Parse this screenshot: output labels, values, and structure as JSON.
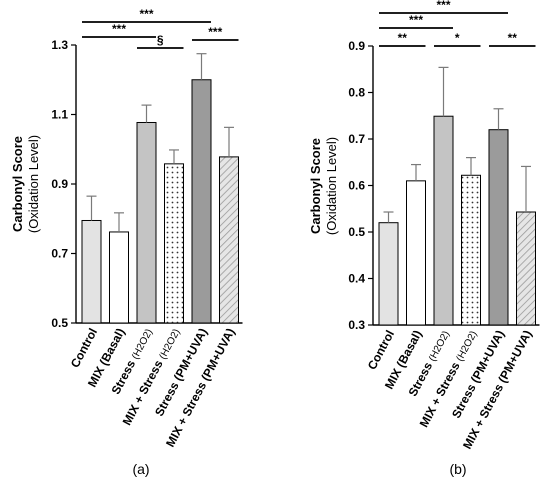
{
  "colors": {
    "light_gray": "#e3e3e3",
    "white": "#ffffff",
    "mid_gray": "#c4c4c4",
    "dark_gray": "#9b9b9b",
    "axis": "#000000",
    "error": "#7a7a7a"
  },
  "chart_data": [
    {
      "type": "bar",
      "panel_label": "(a)",
      "ylabel": "Carbonyl Score",
      "ylabel_sub": "(Oxidation Level)",
      "ylim": [
        0.5,
        1.3
      ],
      "yticks": [
        0.5,
        0.7,
        0.9,
        1.1,
        1.3
      ],
      "ytick_labels": [
        "0.5",
        "0.7",
        "0.9",
        "1.1",
        "1.3"
      ],
      "categories": [
        {
          "label": "Control",
          "sub": ""
        },
        {
          "label": "MIX (Basal)",
          "sub": ""
        },
        {
          "label": "Stress",
          "sub": "(H2O2)"
        },
        {
          "label": "MIX + Stress",
          "sub": "(H2O2)"
        },
        {
          "label": "Stress (PM+UVA)",
          "sub": ""
        },
        {
          "label": "MIX + Stress (PM+UVA)",
          "sub": ""
        }
      ],
      "values": [
        0.795,
        0.762,
        1.077,
        0.958,
        1.2,
        0.978
      ],
      "errors": [
        0.07,
        0.055,
        0.05,
        0.04,
        0.075,
        0.085
      ],
      "patterns": [
        "light",
        "white",
        "mid",
        "dots",
        "dark",
        "hatch"
      ],
      "significance": [
        {
          "from": 0,
          "to": 4,
          "label": "***"
        },
        {
          "from": 0,
          "to": 2,
          "label": "***"
        },
        {
          "from": 2,
          "to": 3,
          "label": "§"
        },
        {
          "from": 4,
          "to": 5,
          "label": "***"
        }
      ]
    },
    {
      "type": "bar",
      "panel_label": "(b)",
      "ylabel": "Carbonyl Score",
      "ylabel_sub": "(Oxidation Level)",
      "ylim": [
        0.3,
        0.9
      ],
      "yticks": [
        0.3,
        0.4,
        0.5,
        0.6,
        0.7,
        0.8,
        0.9
      ],
      "ytick_labels": [
        "0.3",
        "0.4",
        "0.5",
        "0.6",
        "0.7",
        "0.8",
        "0.9"
      ],
      "categories": [
        {
          "label": "Control",
          "sub": ""
        },
        {
          "label": "MIX (Basal)",
          "sub": ""
        },
        {
          "label": "Stress",
          "sub": "(H2O2)"
        },
        {
          "label": "MIX + Stress",
          "sub": "(H2O2)"
        },
        {
          "label": "Stress (PM+UVA)",
          "sub": ""
        },
        {
          "label": "MIX + Stress (PM+UVA)",
          "sub": ""
        }
      ],
      "values": [
        0.52,
        0.61,
        0.749,
        0.622,
        0.72,
        0.543
      ],
      "errors": [
        0.023,
        0.035,
        0.105,
        0.038,
        0.045,
        0.098
      ],
      "patterns": [
        "light",
        "white",
        "mid",
        "dots",
        "dark",
        "hatch"
      ],
      "significance": [
        {
          "from": 0,
          "to": 4,
          "label": "***"
        },
        {
          "from": 0,
          "to": 2,
          "label": "***"
        },
        {
          "from": 0,
          "to": 1,
          "label": "**"
        },
        {
          "from": 2,
          "to": 3,
          "label": "*"
        },
        {
          "from": 4,
          "to": 5,
          "label": "**"
        }
      ]
    }
  ]
}
